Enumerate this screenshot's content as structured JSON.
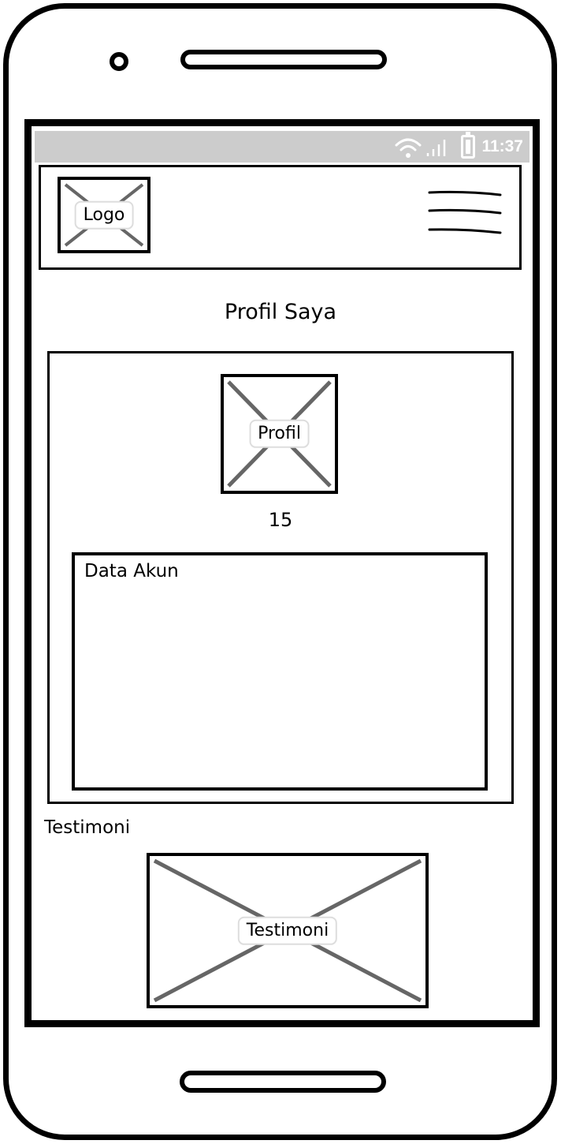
{
  "status_bar": {
    "time": "11:37",
    "icons": [
      "wifi-icon",
      "signal-icon",
      "battery-icon"
    ]
  },
  "header": {
    "logo_label": "Logo",
    "menu_icon": "hamburger-menu-icon"
  },
  "page": {
    "title": "Profil Saya"
  },
  "profile": {
    "image_label": "Profil",
    "value": "15",
    "account_section_label": "Data Akun"
  },
  "testimonial": {
    "heading": "Testimoni",
    "image_label": "Testimoni"
  },
  "colors": {
    "status_bar_bg": "#cccccc",
    "placeholder_x": "#666666",
    "outline": "#000000"
  }
}
